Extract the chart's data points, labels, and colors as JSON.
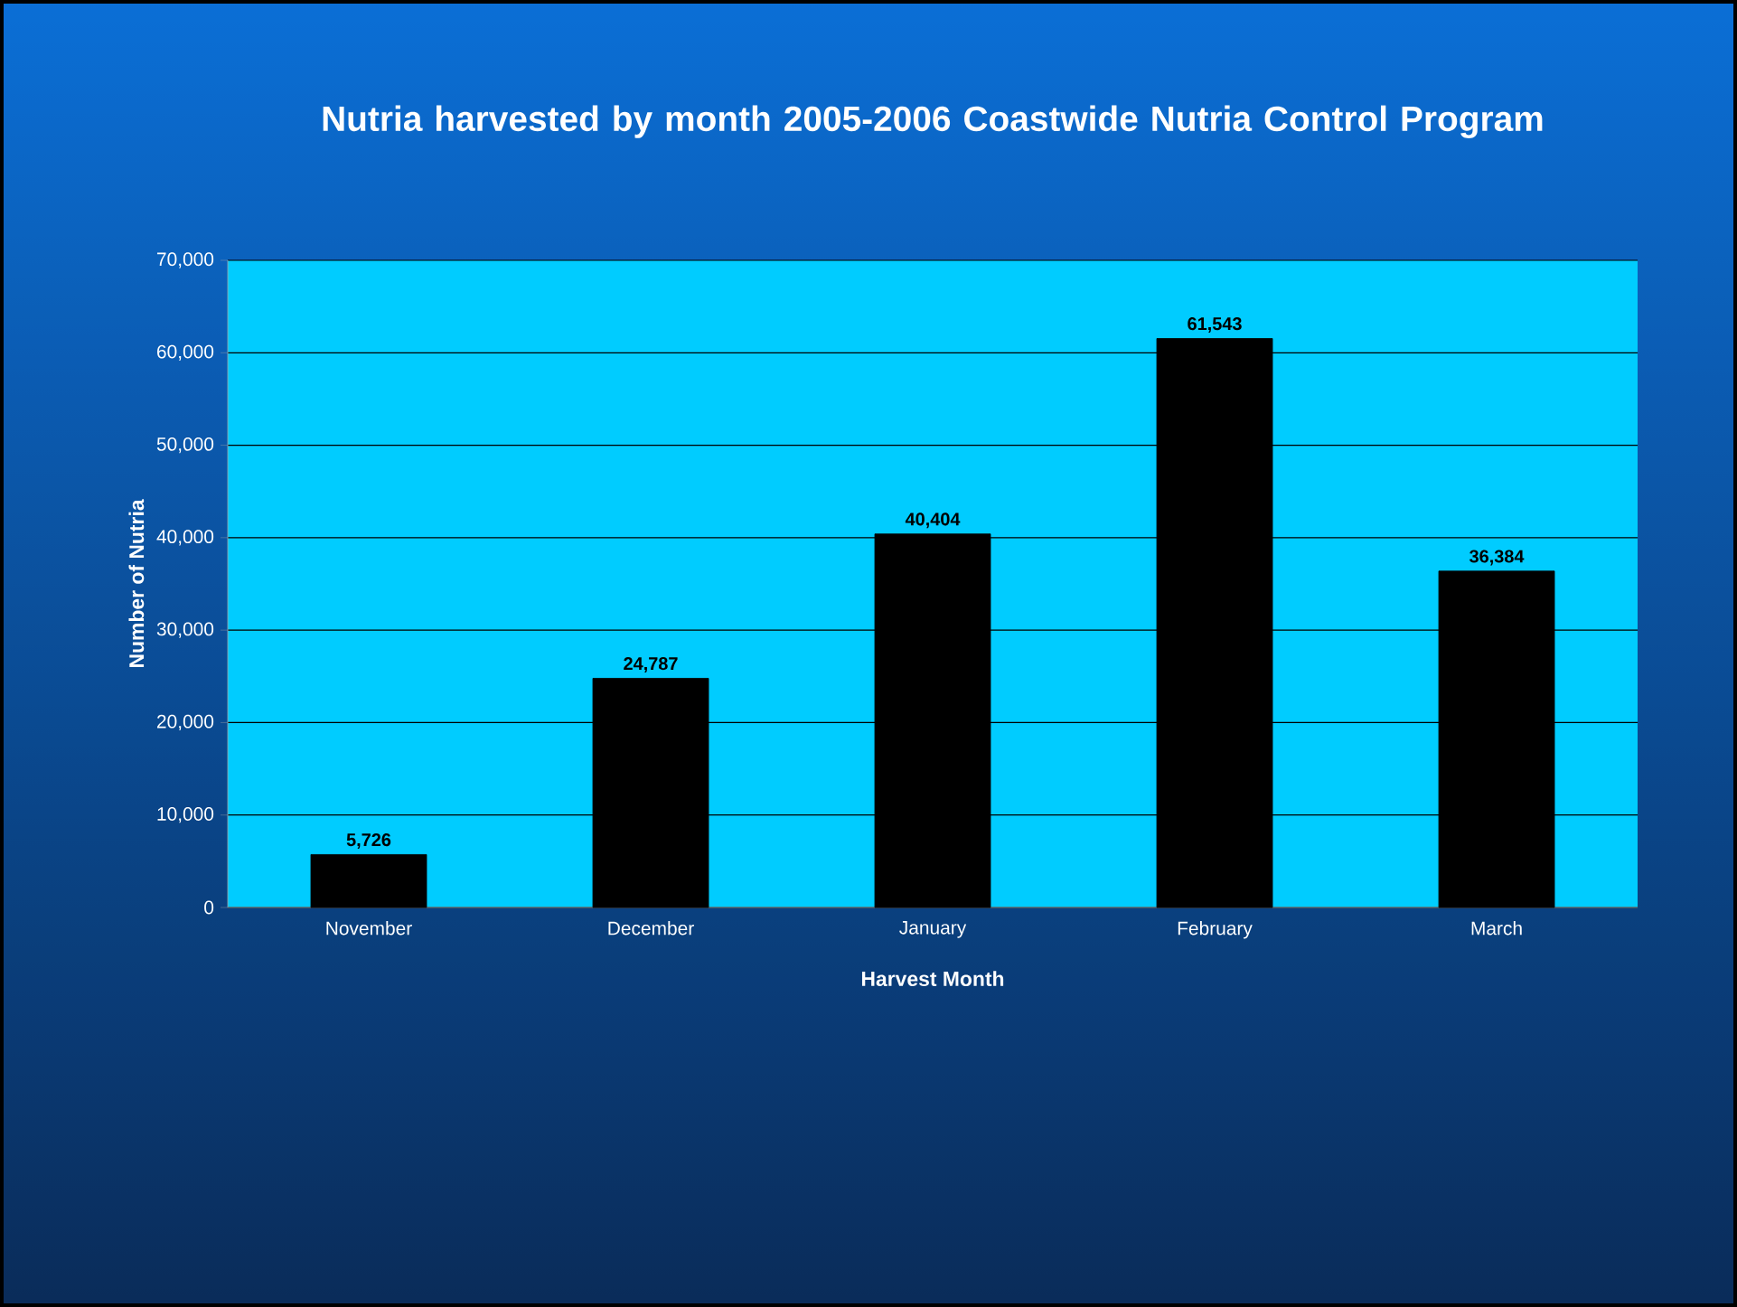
{
  "chart_data": {
    "type": "bar",
    "title": "Nutria harvested by month 2005-2006 Coastwide Nutria Control Program",
    "xlabel": "Harvest Month",
    "ylabel": "Number of Nutria",
    "categories": [
      "November",
      "December",
      "January",
      "February",
      "March"
    ],
    "values": [
      5726,
      24787,
      40404,
      61543,
      36384
    ],
    "value_labels": [
      "5,726",
      "24,787",
      "40,404",
      "61,543",
      "36,384"
    ],
    "color": "#000000",
    "ylim": [
      0,
      70000
    ],
    "yticks": [
      0,
      {
        "value": 10000,
        "label": "10,000"
      },
      {
        "value": 20000,
        "label": "20,000"
      },
      {
        "value": 30000,
        "label": "30,000"
      },
      {
        "value": 40000,
        "label": "40,000"
      },
      {
        "value": 50000,
        "label": "50,000"
      },
      {
        "value": 60000,
        "label": "60,000"
      },
      {
        "value": 70000,
        "label": "70,000"
      }
    ],
    "grid": "y"
  }
}
